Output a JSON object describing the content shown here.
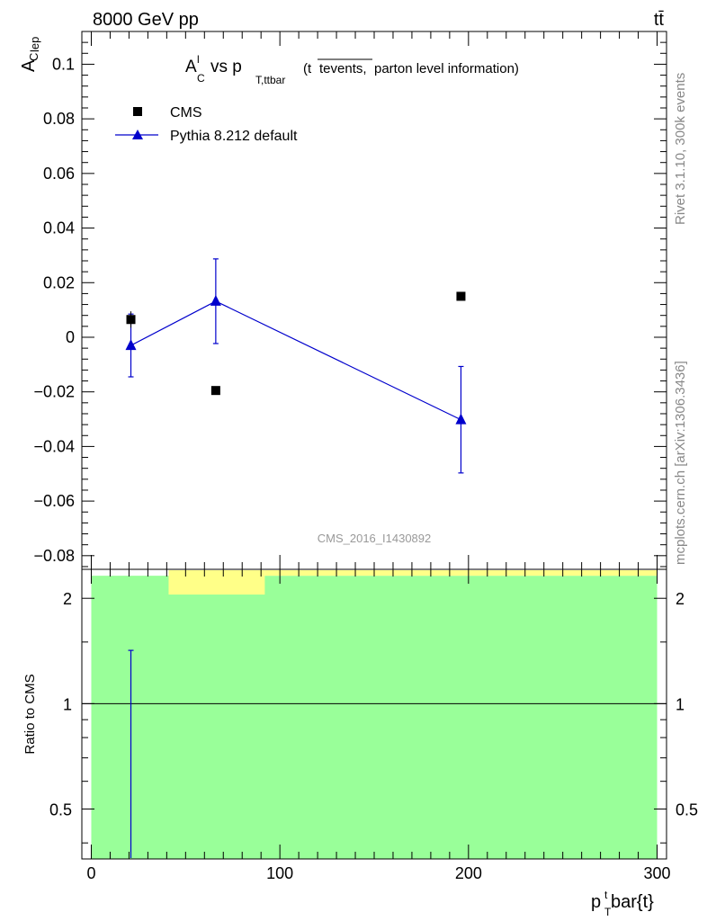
{
  "header": {
    "left": "8000 GeV pp",
    "right": "tt̄"
  },
  "side_text": {
    "rivet": "Rivet 3.1.10,  300k events",
    "source": "mcplots.cern.ch [arXiv:1306.3436]"
  },
  "watermark": "CMS_2016_I1430892",
  "plot_title": {
    "main_A": "A",
    "main_A_sup": "l",
    "main_A_sub": "C",
    "vs": " vs p",
    "vs_sub": "T,ttbar",
    "paren_open": "(t",
    "paren_bar": "tevents,",
    "paren_rest": " parton level information)"
  },
  "axis": {
    "ylabel_main": "A",
    "ylabel_sup": "lep",
    "ylabel_sub": "C",
    "xlabel_main": "p",
    "xlabel_sup": "t",
    "xlabel_sub": "T",
    "xlabel_rest": "bar{t}",
    "ratio_ylabel": "Ratio to CMS"
  },
  "legend": {
    "cms": "CMS",
    "pythia": "Pythia 8.212 default"
  },
  "colors": {
    "cms": "#000000",
    "pythia": "#0000cc",
    "band_green": "#99ff99",
    "band_yellow": "#ffff88"
  },
  "chart_data": [
    {
      "type": "scatter",
      "panel": "main",
      "xlim": [
        -5,
        305
      ],
      "ylim": [
        -0.085,
        0.112
      ],
      "y_ticks": [
        -0.08,
        -0.06,
        -0.04,
        -0.02,
        0,
        0.02,
        0.04,
        0.06,
        0.08,
        0.1
      ],
      "y_tick_labels": [
        "−0.08",
        "−0.06",
        "−0.04",
        "−0.02",
        "0",
        "0.02",
        "0.04",
        "0.06",
        "0.08",
        "0.1"
      ],
      "series": [
        {
          "name": "CMS",
          "marker": "square",
          "points": [
            {
              "x": 21,
              "y": 0.0065,
              "yerr": 0.003
            },
            {
              "x": 66,
              "y": -0.0195,
              "yerr": 0
            },
            {
              "x": 196,
              "y": 0.015,
              "yerr": 0
            }
          ]
        },
        {
          "name": "Pythia 8.212 default",
          "marker": "triangle",
          "points": [
            {
              "x": 21,
              "y": -0.003,
              "yerr": 0.0115
            },
            {
              "x": 66,
              "y": 0.0132,
              "yerr": 0.0155
            },
            {
              "x": 196,
              "y": -0.0302,
              "yerr": 0.0195
            }
          ]
        }
      ]
    },
    {
      "type": "line",
      "panel": "ratio",
      "ylabel": "Ratio to CMS",
      "xlim": [
        -5,
        305
      ],
      "ylim": [
        0.36,
        2.42
      ],
      "y_scale": "log",
      "y_ticks": [
        0.5,
        1,
        2
      ],
      "y_tick_labels": [
        "0.5",
        "1",
        "2"
      ],
      "x_ticks": [
        0,
        100,
        200,
        300
      ],
      "x_tick_labels": [
        "0",
        "100",
        "200",
        "300"
      ],
      "reference_line": 1,
      "bands": [
        {
          "color": "green",
          "x": [
            0,
            300
          ],
          "y": [
            0.36,
            2.32
          ]
        },
        {
          "color": "yellow",
          "x": [
            41,
            92
          ],
          "y": [
            2.05,
            2.42
          ]
        },
        {
          "color": "yellow",
          "x": [
            92,
            300
          ],
          "y": [
            2.32,
            2.42
          ]
        }
      ],
      "series": [
        {
          "name": "Pythia 8.212 default",
          "points": [
            {
              "x": 21,
              "y": 1.0,
              "ylow": 0.36,
              "yhigh": 1.42
            }
          ]
        }
      ]
    }
  ]
}
